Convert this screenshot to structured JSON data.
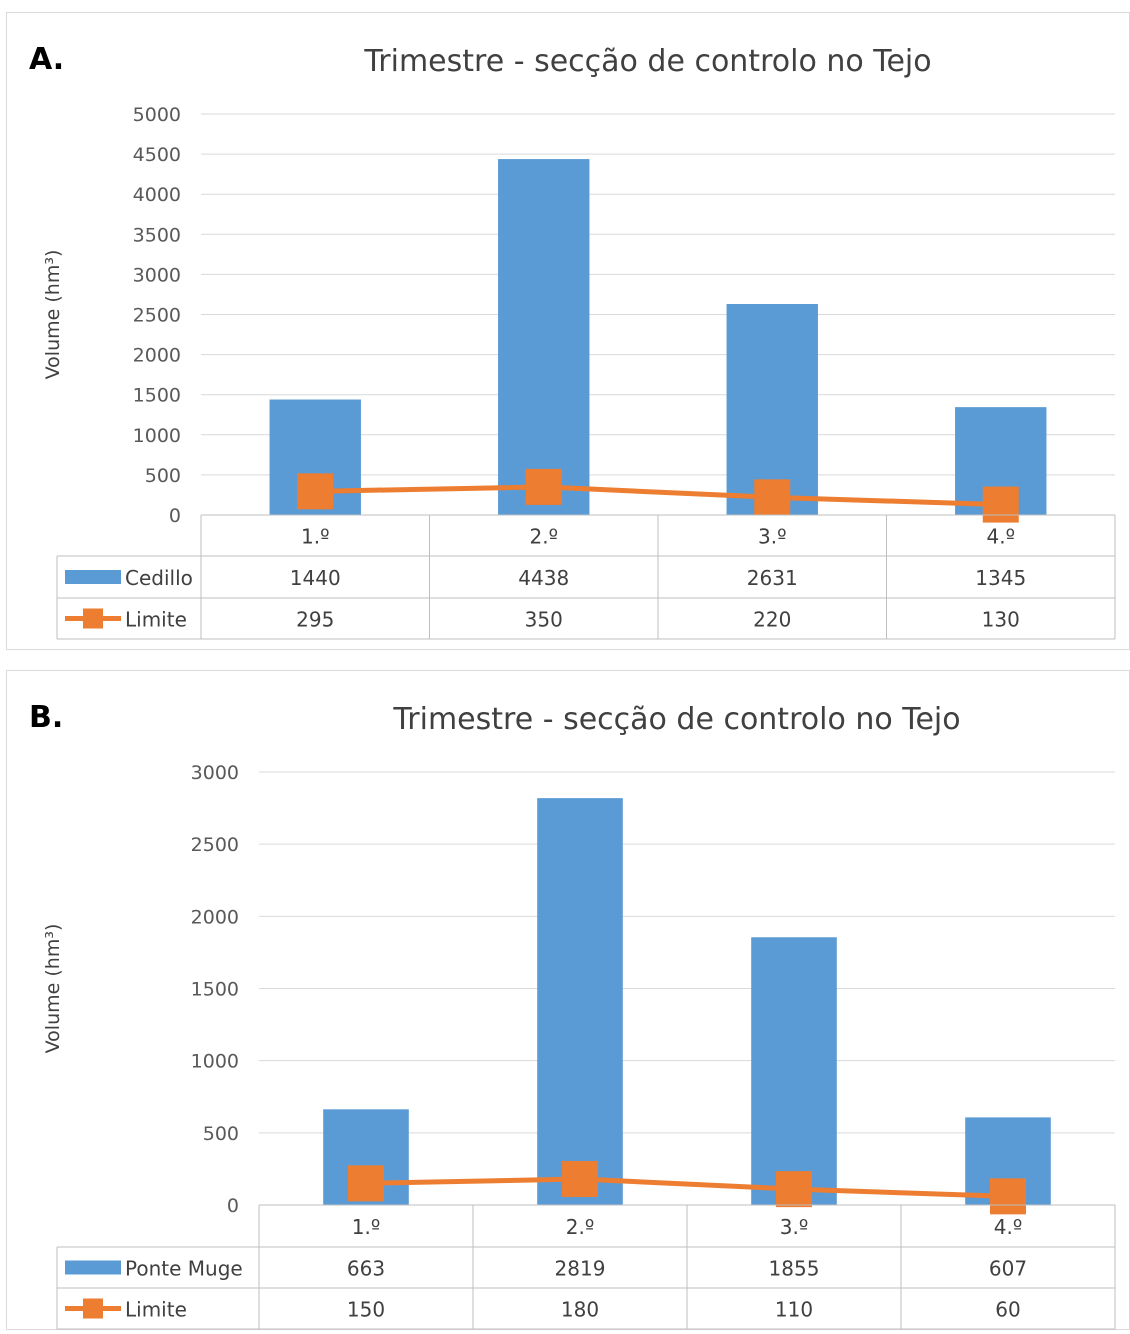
{
  "chart_data": [
    {
      "panel_label": "A.",
      "type": "bar",
      "title": "Trimestre - secção de controlo no Tejo",
      "ylabel": "Volume (hm³)",
      "xlabel": "",
      "categories": [
        "1.º",
        "2.º",
        "3.º",
        "4.º"
      ],
      "ylim": [
        0,
        5000
      ],
      "yticks": [
        0,
        500,
        1000,
        1500,
        2000,
        2500,
        3000,
        3500,
        4000,
        4500,
        5000
      ],
      "grid": true,
      "legend": "data-table",
      "series": [
        {
          "name": "Cedillo",
          "type": "bar",
          "color": "#5b9bd5",
          "values": [
            1440,
            4438,
            2631,
            1345
          ]
        },
        {
          "name": "Limite",
          "type": "line",
          "marker": "square",
          "color": "#ed7d31",
          "values": [
            295,
            350,
            220,
            130
          ]
        }
      ]
    },
    {
      "panel_label": "B.",
      "type": "bar",
      "title": "Trimestre - secção de controlo no Tejo",
      "ylabel": "Volume (hm³)",
      "xlabel": "",
      "categories": [
        "1.º",
        "2.º",
        "3.º",
        "4.º"
      ],
      "ylim": [
        0,
        3000
      ],
      "yticks": [
        0,
        500,
        1000,
        1500,
        2000,
        2500,
        3000
      ],
      "grid": true,
      "legend": "data-table",
      "series": [
        {
          "name": "Ponte Muge",
          "type": "bar",
          "color": "#5b9bd5",
          "values": [
            663,
            2819,
            1855,
            607
          ]
        },
        {
          "name": "Limite",
          "type": "line",
          "marker": "square",
          "color": "#ed7d31",
          "values": [
            150,
            180,
            110,
            60
          ]
        }
      ]
    }
  ]
}
